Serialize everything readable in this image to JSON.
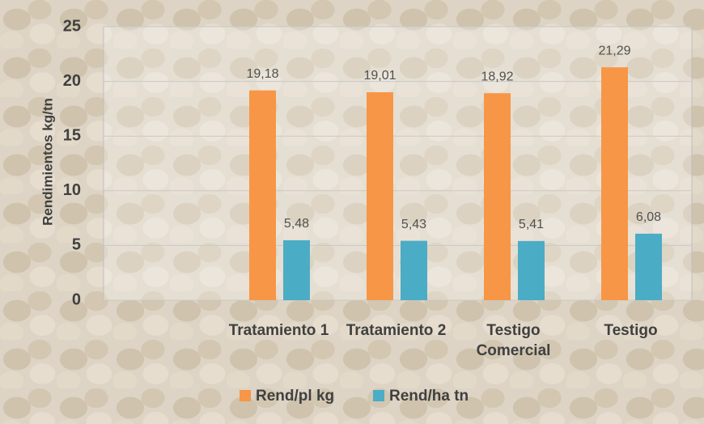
{
  "chart_data": {
    "type": "bar",
    "y_label": "Rendimientos  kg/tn",
    "categories": [
      "Tratamiento 1",
      "Tratamiento 2",
      "Testigo Comercial",
      "Testigo"
    ],
    "series": [
      {
        "name": "Rend/pl kg",
        "color": "#f79646",
        "values": [
          19.18,
          19.01,
          18.92,
          21.29
        ],
        "value_labels": [
          "19,18",
          "19,01",
          "18,92",
          "21,29"
        ]
      },
      {
        "name": "Rend/ha tn",
        "color": "#4bacc6",
        "values": [
          5.48,
          5.43,
          5.41,
          6.08
        ],
        "value_labels": [
          "5,48",
          "5,43",
          "5,41",
          "6,08"
        ]
      }
    ],
    "ylim": [
      0,
      25
    ],
    "yticks": [
      0,
      5,
      10,
      15,
      20,
      25
    ],
    "grid": true,
    "legend": "bottom"
  }
}
